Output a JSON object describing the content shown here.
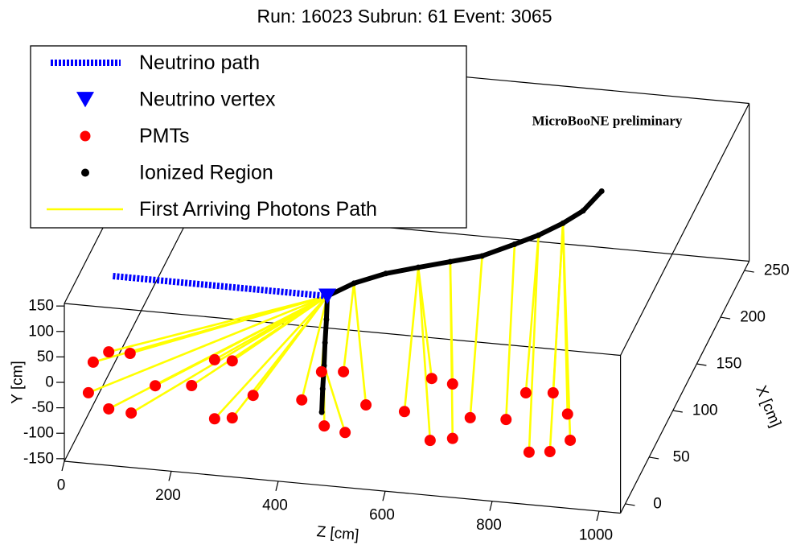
{
  "chart_data": {
    "type": "scatter3d",
    "title": "Run: 16023   Subrun: 61   Event: 3065",
    "annotation": "MicroBooNE preliminary",
    "zlabel": "Z [cm]",
    "ylabel": "Y [cm]",
    "xlabel": "X [cm]",
    "zlim": [
      0,
      1040
    ],
    "xlim": [
      -10,
      260
    ],
    "ylim": [
      -155,
      155
    ],
    "zticks": [
      0,
      200,
      400,
      600,
      800,
      1000
    ],
    "yticks": [
      -150,
      -100,
      -50,
      0,
      50,
      100,
      150
    ],
    "xticks": [
      0,
      50,
      100,
      150,
      200,
      250
    ],
    "legend": "top-left",
    "series": [
      {
        "name": "Neutrino path",
        "color": "#0000ff",
        "style": "dashed-line",
        "z": [
          -25,
          376
        ],
        "x": [
          120,
          120
        ],
        "y": [
          -32,
          -32
        ]
      },
      {
        "name": "Neutrino vertex",
        "color": "#0000ff",
        "style": "triangle",
        "z": [
          376
        ],
        "x": [
          120
        ],
        "y": [
          -32
        ]
      },
      {
        "name": "PMTs",
        "color": "#ff0000",
        "style": "big-dot",
        "z": [
          54,
          83,
          123,
          45,
          83,
          125,
          170,
          238,
          281,
          314,
          353,
          281,
          314,
          444,
          481,
          522,
          486,
          525,
          564,
          636,
          687,
          726,
          684,
          726,
          759,
          826,
          863,
          914,
          941,
          869,
          908,
          946
        ],
        "x": [
          -10,
          -10,
          -10,
          -10,
          -10,
          -10,
          -10,
          -10,
          -10,
          -10,
          -10,
          -10,
          -10,
          -10,
          -10,
          -10,
          -10,
          -10,
          -10,
          -10,
          -10,
          -10,
          -10,
          -10,
          -10,
          -10,
          -10,
          -10,
          -10,
          -10,
          -10,
          -10
        ],
        "y": [
          45,
          68,
          69,
          -16,
          -44,
          -48,
          10,
          17,
          72,
          73,
          9,
          -44,
          -39,
          9,
          68,
          72,
          -38,
          -47,
          11,
          5,
          75,
          68,
          -47,
          -39,
          5,
          8,
          64,
          69,
          30,
          -52,
          -47,
          -21
        ]
      },
      {
        "name": "Ionized Region",
        "color": "#000000",
        "style": "dot-track",
        "z": [
          419,
          410,
          402,
          393,
          385,
          376,
          415,
          464,
          514,
          563,
          612,
          662,
          696,
          731,
          758,
          782
        ],
        "x": [
          60,
          72,
          84,
          96,
          108,
          120,
          132,
          144,
          156,
          168,
          180,
          192,
          204,
          216,
          228,
          240
        ],
        "y": [
          -146,
          -123,
          -100,
          -78,
          -55,
          -32,
          -25,
          -23,
          -28,
          -34,
          -40,
          -34,
          -35,
          -30,
          -25,
          -6
        ]
      },
      {
        "name": "First Arriving Photons Path",
        "color": "#ffff00",
        "style": "segments",
        "pmt": [
          0,
          1,
          2,
          3,
          4,
          5,
          6,
          7,
          8,
          9,
          10,
          11,
          12,
          13,
          14,
          15,
          16,
          17,
          18,
          19,
          20,
          21,
          22,
          23,
          24,
          25,
          26,
          27,
          28,
          29,
          30,
          31
        ],
        "origin": [
          5,
          5,
          5,
          5,
          5,
          5,
          5,
          5,
          5,
          5,
          5,
          5,
          5,
          5,
          5,
          6,
          2,
          2,
          6,
          8,
          8,
          9,
          8,
          9,
          10,
          11,
          12,
          13,
          13,
          12,
          13,
          13
        ]
      }
    ]
  }
}
